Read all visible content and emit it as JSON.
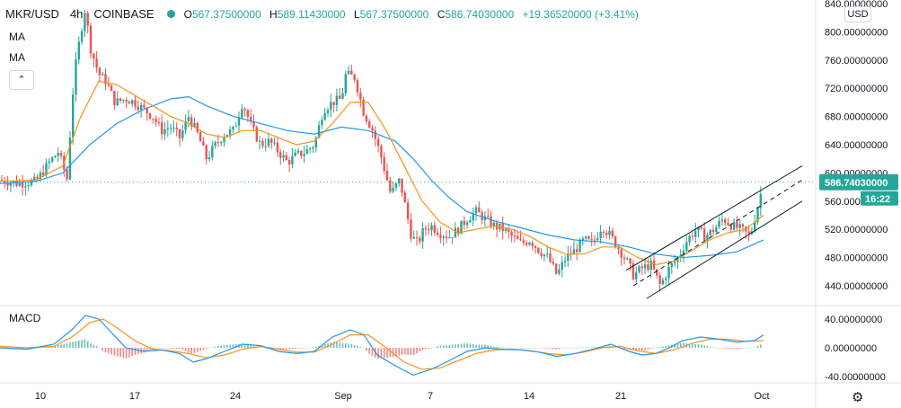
{
  "header": {
    "symbol": "MKR/USD",
    "interval": "4h",
    "exchange": "COINBASE",
    "open_label": "O",
    "open": "567.37500000",
    "high_label": "H",
    "high": "589.11430000",
    "low_label": "L",
    "low": "567.37500000",
    "close_label": "C",
    "close": "586.74030000",
    "change": "+19.36520000 (+3.41%)"
  },
  "indicators": {
    "ma1": "MA",
    "ma2": "MA",
    "collapse_icon": "chevron-up-icon",
    "macd": "MACD"
  },
  "currency": "USD",
  "price_badge": {
    "price": "586.74030000",
    "countdown": "16:22"
  },
  "colors": {
    "up": "#26a69a",
    "down": "#ef5350",
    "ma_fast": "#f7931a",
    "ma_slow": "#2196f3",
    "channel": "#131722"
  },
  "chart_data": {
    "type": "candlestick",
    "price_axis": {
      "ticks": [
        "840.00000000",
        "800.00000000",
        "760.00000000",
        "720.00000000",
        "680.00000000",
        "640.00000000",
        "600.00000000",
        "560.00000000",
        "520.00000000",
        "480.00000000",
        "440.00000000"
      ],
      "ylim": [
        420,
        840
      ]
    },
    "macd_axis": {
      "ticks": [
        "40.00000000",
        "0.00000000",
        "-40.00000000"
      ],
      "ylim": [
        -55,
        50
      ]
    },
    "x_ticks": [
      "10",
      "17",
      "24",
      "Sep",
      "7",
      "14",
      "21",
      "Oct"
    ],
    "price_path": [
      [
        0,
        590
      ],
      [
        20,
        585
      ],
      [
        40,
        588
      ],
      [
        55,
        615
      ],
      [
        65,
        630
      ],
      [
        75,
        590
      ],
      [
        80,
        700
      ],
      [
        85,
        760
      ],
      [
        90,
        800
      ],
      [
        95,
        835
      ],
      [
        100,
        780
      ],
      [
        105,
        760
      ],
      [
        110,
        740
      ],
      [
        118,
        730
      ],
      [
        128,
        700
      ],
      [
        140,
        705
      ],
      [
        150,
        700
      ],
      [
        160,
        690
      ],
      [
        170,
        680
      ],
      [
        180,
        660
      ],
      [
        190,
        665
      ],
      [
        200,
        650
      ],
      [
        210,
        680
      ],
      [
        220,
        655
      ],
      [
        230,
        620
      ],
      [
        240,
        640
      ],
      [
        250,
        655
      ],
      [
        260,
        660
      ],
      [
        270,
        700
      ],
      [
        280,
        665
      ],
      [
        290,
        640
      ],
      [
        300,
        645
      ],
      [
        310,
        630
      ],
      [
        320,
        615
      ],
      [
        330,
        625
      ],
      [
        340,
        630
      ],
      [
        350,
        640
      ],
      [
        360,
        690
      ],
      [
        370,
        700
      ],
      [
        380,
        705
      ],
      [
        385,
        740
      ],
      [
        395,
        735
      ],
      [
        405,
        685
      ],
      [
        415,
        660
      ],
      [
        425,
        620
      ],
      [
        435,
        570
      ],
      [
        445,
        590
      ],
      [
        450,
        560
      ],
      [
        458,
        510
      ],
      [
        465,
        500
      ],
      [
        472,
        520
      ],
      [
        480,
        525
      ],
      [
        490,
        515
      ],
      [
        500,
        510
      ],
      [
        510,
        520
      ],
      [
        520,
        535
      ],
      [
        530,
        545
      ],
      [
        540,
        535
      ],
      [
        550,
        525
      ],
      [
        560,
        520
      ],
      [
        570,
        510
      ],
      [
        580,
        500
      ],
      [
        590,
        505
      ],
      [
        600,
        490
      ],
      [
        610,
        480
      ],
      [
        620,
        455
      ],
      [
        630,
        480
      ],
      [
        640,
        490
      ],
      [
        650,
        505
      ],
      [
        660,
        500
      ],
      [
        670,
        525
      ],
      [
        680,
        510
      ],
      [
        690,
        490
      ],
      [
        700,
        470
      ],
      [
        705,
        455
      ],
      [
        715,
        465
      ],
      [
        725,
        470
      ],
      [
        735,
        440
      ],
      [
        745,
        465
      ],
      [
        755,
        480
      ],
      [
        765,
        505
      ],
      [
        775,
        520
      ],
      [
        785,
        510
      ],
      [
        795,
        520
      ],
      [
        805,
        535
      ],
      [
        815,
        525
      ],
      [
        825,
        520
      ],
      [
        835,
        510
      ],
      [
        845,
        560
      ],
      [
        850,
        587
      ]
    ],
    "ma_fast_path": [
      [
        0,
        588
      ],
      [
        40,
        590
      ],
      [
        70,
        610
      ],
      [
        90,
        680
      ],
      [
        110,
        730
      ],
      [
        130,
        725
      ],
      [
        150,
        710
      ],
      [
        170,
        695
      ],
      [
        190,
        680
      ],
      [
        210,
        670
      ],
      [
        230,
        655
      ],
      [
        250,
        650
      ],
      [
        270,
        660
      ],
      [
        290,
        660
      ],
      [
        310,
        650
      ],
      [
        330,
        640
      ],
      [
        350,
        645
      ],
      [
        370,
        670
      ],
      [
        390,
        700
      ],
      [
        410,
        700
      ],
      [
        430,
        660
      ],
      [
        450,
        610
      ],
      [
        470,
        560
      ],
      [
        490,
        530
      ],
      [
        510,
        515
      ],
      [
        530,
        520
      ],
      [
        550,
        525
      ],
      [
        570,
        520
      ],
      [
        590,
        510
      ],
      [
        610,
        495
      ],
      [
        630,
        485
      ],
      [
        650,
        485
      ],
      [
        670,
        495
      ],
      [
        690,
        495
      ],
      [
        710,
        480
      ],
      [
        730,
        470
      ],
      [
        750,
        475
      ],
      [
        770,
        490
      ],
      [
        790,
        505
      ],
      [
        810,
        515
      ],
      [
        830,
        520
      ],
      [
        850,
        540
      ]
    ],
    "ma_slow_path": [
      [
        0,
        585
      ],
      [
        40,
        588
      ],
      [
        70,
        600
      ],
      [
        100,
        640
      ],
      [
        130,
        670
      ],
      [
        160,
        690
      ],
      [
        190,
        705
      ],
      [
        210,
        708
      ],
      [
        230,
        695
      ],
      [
        260,
        680
      ],
      [
        290,
        670
      ],
      [
        320,
        660
      ],
      [
        350,
        655
      ],
      [
        380,
        665
      ],
      [
        410,
        660
      ],
      [
        440,
        645
      ],
      [
        460,
        620
      ],
      [
        480,
        590
      ],
      [
        500,
        565
      ],
      [
        520,
        545
      ],
      [
        550,
        532
      ],
      [
        580,
        522
      ],
      [
        610,
        512
      ],
      [
        640,
        505
      ],
      [
        670,
        502
      ],
      [
        700,
        495
      ],
      [
        730,
        485
      ],
      [
        760,
        480
      ],
      [
        790,
        483
      ],
      [
        820,
        488
      ],
      [
        850,
        505
      ]
    ],
    "channel": {
      "upper": [
        [
          697,
          462
        ],
        [
          893,
          610
        ]
      ],
      "mid": [
        [
          705,
          440
        ],
        [
          893,
          590
        ]
      ],
      "lower": [
        [
          720,
          422
        ],
        [
          893,
          560
        ]
      ]
    },
    "current_price_line": 586.74,
    "macd_line_path": [
      [
        0,
        0
      ],
      [
        30,
        -2
      ],
      [
        60,
        5
      ],
      [
        80,
        25
      ],
      [
        95,
        45
      ],
      [
        110,
        40
      ],
      [
        125,
        20
      ],
      [
        140,
        0
      ],
      [
        160,
        -5
      ],
      [
        180,
        -3
      ],
      [
        200,
        -8
      ],
      [
        215,
        -20
      ],
      [
        230,
        -15
      ],
      [
        250,
        -5
      ],
      [
        270,
        5
      ],
      [
        290,
        3
      ],
      [
        310,
        -5
      ],
      [
        330,
        -8
      ],
      [
        350,
        -5
      ],
      [
        370,
        15
      ],
      [
        390,
        25
      ],
      [
        405,
        18
      ],
      [
        420,
        -10
      ],
      [
        440,
        -25
      ],
      [
        460,
        -38
      ],
      [
        480,
        -30
      ],
      [
        500,
        -18
      ],
      [
        520,
        -5
      ],
      [
        540,
        0
      ],
      [
        560,
        -2
      ],
      [
        580,
        -3
      ],
      [
        600,
        -6
      ],
      [
        620,
        -12
      ],
      [
        640,
        -8
      ],
      [
        660,
        -2
      ],
      [
        680,
        5
      ],
      [
        700,
        -5
      ],
      [
        715,
        -10
      ],
      [
        730,
        -8
      ],
      [
        745,
        0
      ],
      [
        760,
        10
      ],
      [
        780,
        15
      ],
      [
        800,
        12
      ],
      [
        820,
        8
      ],
      [
        840,
        10
      ],
      [
        850,
        18
      ]
    ],
    "signal_line_path": [
      [
        0,
        2
      ],
      [
        30,
        0
      ],
      [
        60,
        2
      ],
      [
        80,
        15
      ],
      [
        100,
        35
      ],
      [
        115,
        40
      ],
      [
        130,
        28
      ],
      [
        150,
        10
      ],
      [
        170,
        -2
      ],
      [
        190,
        -4
      ],
      [
        210,
        -8
      ],
      [
        230,
        -14
      ],
      [
        250,
        -10
      ],
      [
        270,
        -2
      ],
      [
        290,
        2
      ],
      [
        310,
        -2
      ],
      [
        330,
        -6
      ],
      [
        350,
        -6
      ],
      [
        370,
        5
      ],
      [
        390,
        18
      ],
      [
        410,
        18
      ],
      [
        430,
        0
      ],
      [
        450,
        -20
      ],
      [
        470,
        -30
      ],
      [
        490,
        -28
      ],
      [
        510,
        -18
      ],
      [
        530,
        -8
      ],
      [
        550,
        -3
      ],
      [
        570,
        -2
      ],
      [
        590,
        -4
      ],
      [
        610,
        -8
      ],
      [
        630,
        -10
      ],
      [
        650,
        -6
      ],
      [
        670,
        0
      ],
      [
        690,
        2
      ],
      [
        710,
        -4
      ],
      [
        730,
        -8
      ],
      [
        750,
        -3
      ],
      [
        770,
        6
      ],
      [
        790,
        12
      ],
      [
        810,
        12
      ],
      [
        830,
        9
      ],
      [
        850,
        10
      ]
    ]
  }
}
